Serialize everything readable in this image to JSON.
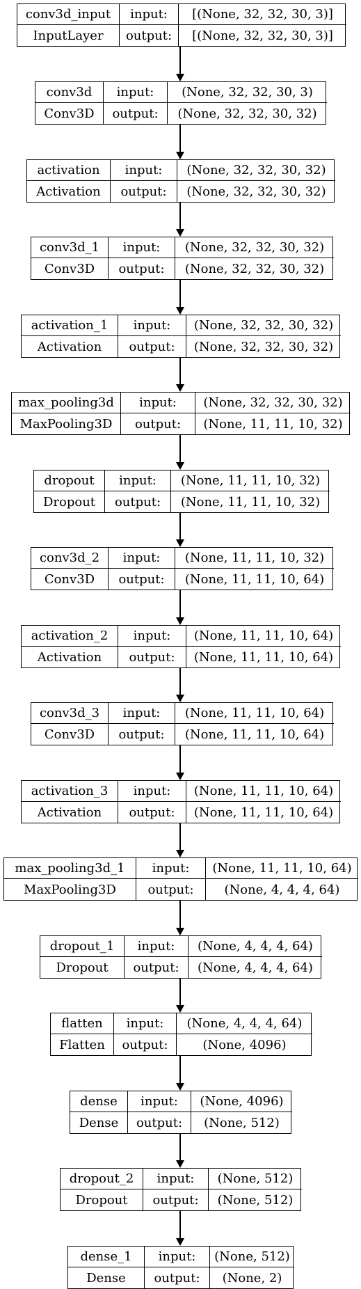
{
  "io_labels": {
    "input": "input:",
    "output": "output:"
  },
  "layers": [
    {
      "name": "conv3d_input",
      "type": "InputLayer",
      "input": "[(None, 32, 32, 30, 3)]",
      "output": "[(None, 32, 32, 30, 3)]"
    },
    {
      "name": "conv3d",
      "type": "Conv3D",
      "input": "(None, 32, 32, 30, 3)",
      "output": "(None, 32, 32, 30, 32)"
    },
    {
      "name": "activation",
      "type": "Activation",
      "input": "(None, 32, 32, 30, 32)",
      "output": "(None, 32, 32, 30, 32)"
    },
    {
      "name": "conv3d_1",
      "type": "Conv3D",
      "input": "(None, 32, 32, 30, 32)",
      "output": "(None, 32, 32, 30, 32)"
    },
    {
      "name": "activation_1",
      "type": "Activation",
      "input": "(None, 32, 32, 30, 32)",
      "output": "(None, 32, 32, 30, 32)"
    },
    {
      "name": "max_pooling3d",
      "type": "MaxPooling3D",
      "input": "(None, 32, 32, 30, 32)",
      "output": "(None, 11, 11, 10, 32)"
    },
    {
      "name": "dropout",
      "type": "Dropout",
      "input": "(None, 11, 11, 10, 32)",
      "output": "(None, 11, 11, 10, 32)"
    },
    {
      "name": "conv3d_2",
      "type": "Conv3D",
      "input": "(None, 11, 11, 10, 32)",
      "output": "(None, 11, 11, 10, 64)"
    },
    {
      "name": "activation_2",
      "type": "Activation",
      "input": "(None, 11, 11, 10, 64)",
      "output": "(None, 11, 11, 10, 64)"
    },
    {
      "name": "conv3d_3",
      "type": "Conv3D",
      "input": "(None, 11, 11, 10, 64)",
      "output": "(None, 11, 11, 10, 64)"
    },
    {
      "name": "activation_3",
      "type": "Activation",
      "input": "(None, 11, 11, 10, 64)",
      "output": "(None, 11, 11, 10, 64)"
    },
    {
      "name": "max_pooling3d_1",
      "type": "MaxPooling3D",
      "input": "(None, 11, 11, 10, 64)",
      "output": "(None, 4, 4, 4, 64)"
    },
    {
      "name": "dropout_1",
      "type": "Dropout",
      "input": "(None, 4, 4, 4, 64)",
      "output": "(None, 4, 4, 4, 64)"
    },
    {
      "name": "flatten",
      "type": "Flatten",
      "input": "(None, 4, 4, 4, 64)",
      "output": "(None, 4096)"
    },
    {
      "name": "dense",
      "type": "Dense",
      "input": "(None, 4096)",
      "output": "(None, 512)"
    },
    {
      "name": "dropout_2",
      "type": "Dropout",
      "input": "(None, 512)",
      "output": "(None, 512)"
    },
    {
      "name": "dense_1",
      "type": "Dense",
      "input": "(None, 512)",
      "output": "(None, 2)"
    }
  ]
}
